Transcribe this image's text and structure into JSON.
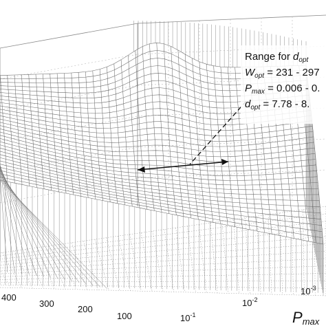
{
  "chart_data": {
    "type": "surface3d",
    "title": "",
    "grid": true,
    "x_axis": {
      "ticks": [
        "400",
        "300",
        "200",
        "100"
      ]
    },
    "y_axis": {
      "label_main": "P",
      "label_sub": "max",
      "scale": "log",
      "ticks": [
        {
          "base": "10",
          "exp": "-3"
        },
        {
          "base": "10",
          "exp": "-2"
        },
        {
          "base": "10",
          "exp": "-1"
        }
      ]
    },
    "annotation": {
      "line1_prefix": "Range for ",
      "line1_var": "d",
      "line1_sub": "opt",
      "line2_var": "W",
      "line2_sub": "opt",
      "line2_value": " = 231 - 297",
      "line3_var": "P",
      "line3_sub": "max",
      "line3_value": " = 0.006 - 0.",
      "line4_var": "d",
      "line4_sub": "opt",
      "line4_value": " = 7.78 - 8."
    }
  }
}
